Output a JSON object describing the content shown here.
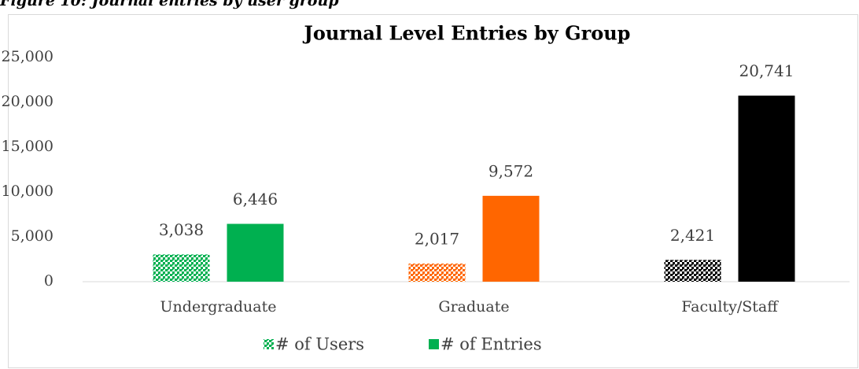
{
  "caption": "Figure 10: Journal entries by user group",
  "chart_data": {
    "type": "bar",
    "title": "Journal Level Entries by Group",
    "categories": [
      "Undergraduate",
      "Graduate",
      "Faculty/Staff"
    ],
    "series": [
      {
        "name": "# of Users",
        "colors": [
          "#00b050",
          "#ff6600",
          "#000000"
        ],
        "pattern": true,
        "values": [
          3038,
          2017,
          2421
        ],
        "value_labels": [
          "3,038",
          "2,017",
          "2,421"
        ]
      },
      {
        "name": "# of Entries",
        "colors": [
          "#00b050",
          "#ff6600",
          "#000000"
        ],
        "pattern": false,
        "values": [
          6446,
          9572,
          20741
        ],
        "value_labels": [
          "6,446",
          "9,572",
          "20,741"
        ]
      }
    ],
    "ylim": [
      0,
      25000
    ],
    "yticks": [
      0,
      {
        "value": 5000,
        "label": "5,000"
      },
      {
        "value": 10000,
        "label": "10,000"
      },
      {
        "value": 15000,
        "label": "15,000"
      },
      {
        "value": 20000,
        "label": "20,000"
      },
      {
        "value": 25000,
        "label": "25,000"
      }
    ],
    "grid": false,
    "legend": "bottom"
  }
}
